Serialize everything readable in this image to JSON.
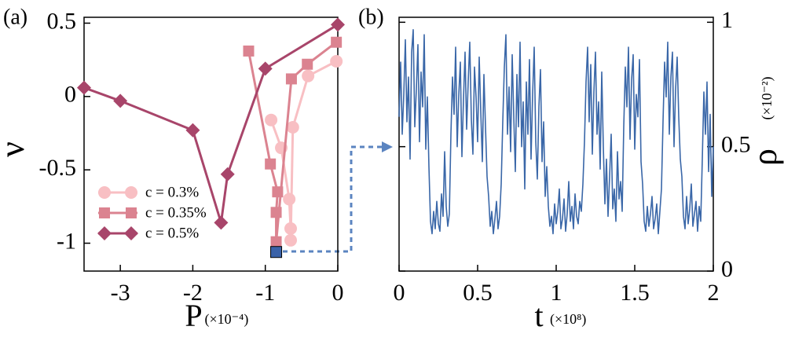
{
  "chart_data": [
    {
      "type": "line",
      "panel_label": "(a)",
      "xlabel": "P",
      "xlabel_unit": "(×10⁻⁴)",
      "ylabel": "ν",
      "xlim": [
        -3.5,
        0
      ],
      "ylim": [
        -1.19,
        0.54
      ],
      "xticks": [
        -3,
        -2,
        -1,
        0
      ],
      "yticks": [
        -1,
        -0.5,
        0,
        0.5
      ],
      "y_axis_side": "left",
      "legend": "lower left",
      "series": [
        {
          "name": "c = 0.3%",
          "color": "#f8bfc3",
          "marker": "circle",
          "x": [
            -0.92,
            -0.78,
            -0.67,
            -0.65,
            -0.65,
            -0.62,
            -0.41,
            -0.02
          ],
          "values": [
            -0.16,
            -0.35,
            -0.7,
            -0.9,
            -0.98,
            -0.21,
            0.14,
            0.24
          ]
        },
        {
          "name": "c = 0.35%",
          "color": "#db8390",
          "marker": "square",
          "x": [
            -1.23,
            -0.93,
            -0.83,
            -0.85,
            -0.85,
            -0.64,
            -0.42,
            -0.02
          ],
          "values": [
            0.31,
            -0.46,
            -0.65,
            -0.79,
            -0.99,
            0.12,
            0.22,
            0.37
          ]
        },
        {
          "name": "c = 0.5%",
          "color": "#a8456a",
          "marker": "diamond",
          "x": [
            -3.5,
            -3,
            -2,
            -1.61,
            -1.52,
            -1,
            0
          ],
          "values": [
            0.06,
            -0.03,
            -0.23,
            -0.86,
            -0.53,
            0.19,
            0.49
          ]
        }
      ],
      "highlight": {
        "x": -0.85,
        "y": -1.06,
        "color": "#3a62a8"
      }
    },
    {
      "type": "line",
      "panel_label": "(b)",
      "xlabel": "t",
      "xlabel_unit": "(×10⁸)",
      "ylabel": "ρ",
      "ylabel_unit": "(×10⁻²)",
      "xlim": [
        0,
        2
      ],
      "ylim": [
        0,
        1.02
      ],
      "xticks": [
        0,
        0.5,
        1,
        1.5,
        2
      ],
      "yticks": [
        0,
        0.5,
        1
      ],
      "y_axis_side": "right",
      "series": [
        {
          "color": "#3a67a8",
          "x": [
            0,
            0.01,
            0.02,
            0.03,
            0.04,
            0.05,
            0.06,
            0.07,
            0.08,
            0.09,
            0.1,
            0.11,
            0.12,
            0.13,
            0.14,
            0.15,
            0.16,
            0.17,
            0.18,
            0.19,
            0.2,
            0.21,
            0.22,
            0.23,
            0.24,
            0.25,
            0.26,
            0.27,
            0.28,
            0.29,
            0.3,
            0.31,
            0.32,
            0.33,
            0.34,
            0.35,
            0.36,
            0.37,
            0.38,
            0.39,
            0.4,
            0.41,
            0.42,
            0.43,
            0.44,
            0.45,
            0.46,
            0.47,
            0.48,
            0.49,
            0.5,
            0.51,
            0.52,
            0.53,
            0.54,
            0.55,
            0.56,
            0.57,
            0.58,
            0.59,
            0.6,
            0.61,
            0.62,
            0.63,
            0.64,
            0.65,
            0.66,
            0.67,
            0.68,
            0.69,
            0.7,
            0.71,
            0.72,
            0.73,
            0.74,
            0.75,
            0.76,
            0.77,
            0.78,
            0.79,
            0.8,
            0.81,
            0.82,
            0.83,
            0.84,
            0.85,
            0.86,
            0.87,
            0.88,
            0.89,
            0.9,
            0.91,
            0.92,
            0.93,
            0.94,
            0.95,
            0.96,
            0.97,
            0.98,
            0.99,
            1,
            1.01,
            1.02,
            1.03,
            1.04,
            1.05,
            1.06,
            1.07,
            1.08,
            1.09,
            1.1,
            1.11,
            1.12,
            1.13,
            1.14,
            1.15,
            1.16,
            1.17,
            1.18,
            1.19,
            1.2,
            1.21,
            1.22,
            1.23,
            1.24,
            1.25,
            1.26,
            1.27,
            1.28,
            1.29,
            1.3,
            1.31,
            1.32,
            1.33,
            1.34,
            1.35,
            1.36,
            1.37,
            1.38,
            1.39,
            1.4,
            1.41,
            1.42,
            1.43,
            1.44,
            1.45,
            1.46,
            1.47,
            1.48,
            1.49,
            1.5,
            1.51,
            1.52,
            1.53,
            1.54,
            1.55,
            1.56,
            1.57,
            1.58,
            1.59,
            1.6,
            1.61,
            1.62,
            1.63,
            1.64,
            1.65,
            1.66,
            1.67,
            1.68,
            1.69,
            1.7,
            1.71,
            1.72,
            1.73,
            1.74,
            1.75,
            1.76,
            1.77,
            1.78,
            1.79,
            1.8,
            1.81,
            1.82,
            1.83,
            1.84,
            1.85,
            1.86,
            1.87,
            1.88,
            1.89,
            1.9,
            1.91,
            1.92,
            1.93,
            1.94,
            1.95,
            1.96,
            1.97,
            1.98,
            1.99,
            2
          ],
          "values": [
            0.62,
            0.84,
            0.55,
            0.71,
            0.93,
            0.6,
            0.78,
            0.45,
            0.88,
            0.97,
            0.58,
            0.73,
            0.91,
            0.52,
            0.8,
            0.66,
            0.95,
            0.49,
            0.7,
            0.42,
            0.2,
            0.15,
            0.24,
            0.17,
            0.28,
            0.19,
            0.16,
            0.31,
            0.22,
            0.48,
            0.26,
            0.18,
            0.23,
            0.55,
            0.78,
            0.63,
            0.9,
            0.5,
            0.71,
            0.84,
            0.46,
            0.69,
            0.88,
            0.57,
            0.76,
            0.92,
            0.61,
            0.47,
            0.82,
            0.7,
            0.52,
            0.86,
            0.64,
            0.44,
            0.79,
            0.58,
            0.38,
            0.3,
            0.18,
            0.24,
            0.15,
            0.21,
            0.28,
            0.17,
            0.22,
            0.35,
            0.6,
            0.82,
            0.95,
            0.55,
            0.74,
            0.48,
            0.87,
            0.62,
            0.4,
            0.79,
            0.58,
            0.92,
            0.5,
            0.68,
            0.33,
            0.76,
            0.55,
            0.85,
            0.45,
            0.71,
            0.9,
            0.52,
            0.37,
            0.66,
            0.81,
            0.44,
            0.6,
            0.3,
            0.42,
            0.26,
            0.18,
            0.22,
            0.15,
            0.27,
            0.19,
            0.24,
            0.33,
            0.17,
            0.21,
            0.29,
            0.16,
            0.23,
            0.36,
            0.2,
            0.26,
            0.17,
            0.31,
            0.22,
            0.19,
            0.28,
            0.24,
            0.35,
            0.52,
            0.76,
            0.9,
            0.6,
            0.83,
            0.47,
            0.72,
            0.88,
            0.55,
            0.68,
            0.41,
            0.8,
            0.5,
            0.27,
            0.45,
            0.22,
            0.38,
            0.55,
            0.25,
            0.33,
            0.2,
            0.48,
            0.29,
            0.36,
            0.24,
            0.58,
            0.82,
            0.66,
            0.9,
            0.53,
            0.77,
            0.87,
            0.49,
            0.71,
            0.62,
            0.85,
            0.44,
            0.35,
            0.2,
            0.16,
            0.26,
            0.18,
            0.23,
            0.3,
            0.17,
            0.21,
            0.27,
            0.15,
            0.24,
            0.33,
            0.6,
            0.84,
            0.7,
            0.92,
            0.55,
            0.78,
            0.88,
            0.5,
            0.73,
            0.86,
            0.62,
            0.45,
            0.38,
            0.22,
            0.17,
            0.3,
            0.19,
            0.25,
            0.35,
            0.18,
            0.23,
            0.28,
            0.16,
            0.26,
            0.2,
            0.45,
            0.72,
            0.55,
            0.76,
            0.4,
            0.63,
            0.3,
            0.5
          ]
        }
      ]
    }
  ]
}
